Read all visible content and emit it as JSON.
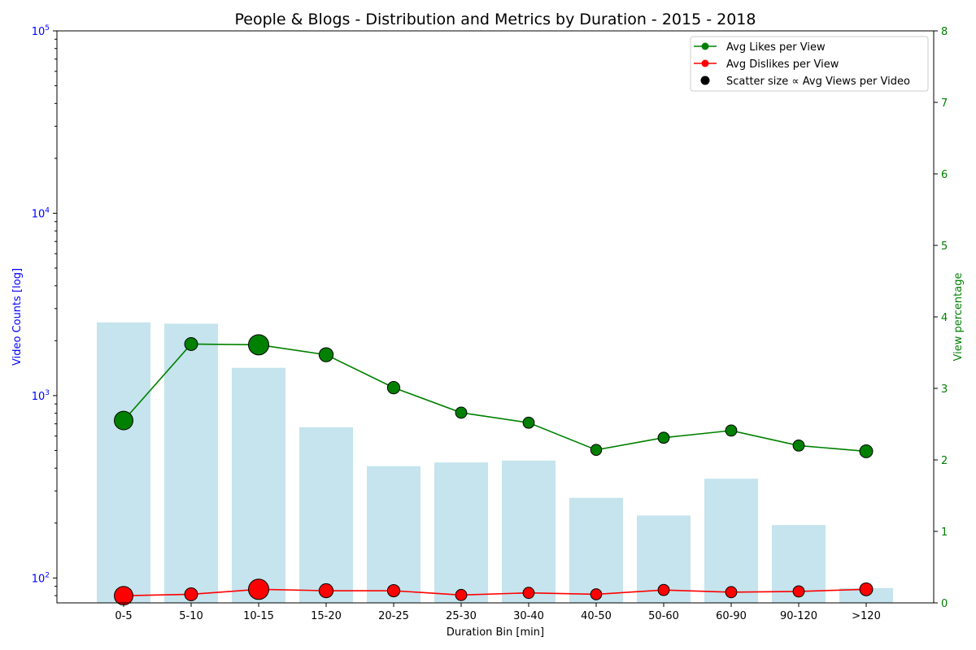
{
  "chart_data": {
    "type": "bar+line+scatter",
    "title": "People & Blogs - Distribution and Metrics by Duration - 2015 - 2018",
    "xlabel": "Duration Bin [min]",
    "ylabel_left": "Video Counts [log]",
    "ylabel_right": "View percentage",
    "y_left_scale": "log",
    "y_left_ticks": [
      {
        "base": "10",
        "exp": "2",
        "value": 100
      },
      {
        "base": "10",
        "exp": "3",
        "value": 1000
      },
      {
        "base": "10",
        "exp": "4",
        "value": 10000
      },
      {
        "base": "10",
        "exp": "5",
        "value": 100000
      }
    ],
    "y_left_range": [
      73,
      100000
    ],
    "y_right_ticks": [
      "0",
      "1",
      "2",
      "3",
      "4",
      "5",
      "6",
      "7",
      "8"
    ],
    "y_right_range": [
      0,
      8
    ],
    "categories": [
      "0-5",
      "5-10",
      "10-15",
      "15-20",
      "20-25",
      "25-30",
      "30-40",
      "40-50",
      "50-60",
      "60-90",
      "90-120",
      ">120"
    ],
    "video_counts": [
      2520,
      2480,
      1420,
      670,
      410,
      430,
      440,
      275,
      220,
      350,
      195,
      88
    ],
    "series": [
      {
        "name": "Avg Likes per View",
        "color": "#008000",
        "values": [
          2.55,
          3.62,
          3.61,
          3.47,
          3.01,
          2.66,
          2.52,
          2.14,
          2.31,
          2.41,
          2.2,
          2.12
        ]
      },
      {
        "name": "Avg Dislikes per View",
        "color": "#ff0000",
        "values": [
          0.1,
          0.12,
          0.19,
          0.17,
          0.17,
          0.11,
          0.14,
          0.12,
          0.18,
          0.15,
          0.16,
          0.19
        ]
      }
    ],
    "scatter_size_legend": "Scatter size ∝ Avg Views per Video",
    "avg_views_relative": [
      0.85,
      0.35,
      1.0,
      0.45,
      0.3,
      0.2,
      0.2,
      0.18,
      0.2,
      0.2,
      0.2,
      0.35
    ],
    "colors": {
      "bars": "#add8e6",
      "left_axis": "#0000ff",
      "right_axis": "#008000"
    },
    "legend_position": "top-right",
    "grid": false
  }
}
